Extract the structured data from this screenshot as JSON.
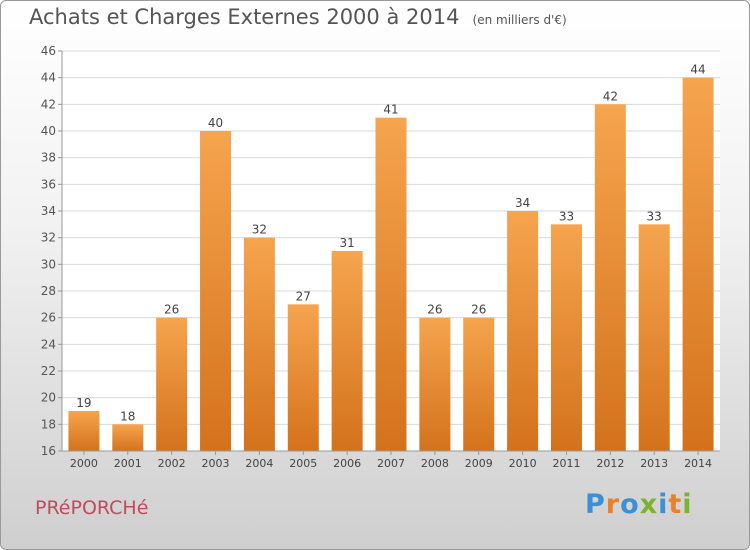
{
  "header": {
    "title": "Achats et Charges Externes 2000 à 2014",
    "unit": "(en milliers d'€)"
  },
  "footer": {
    "commune": "PRéPORCHé",
    "logo": {
      "text": "Proxiti",
      "colors": [
        "#3a8fd6",
        "#e8812a",
        "#3a8fd6",
        "#7bb32e",
        "#3a8fd6",
        "#e8812a",
        "#7bb32e"
      ]
    }
  },
  "chart_data": {
    "type": "bar",
    "categories": [
      "2000",
      "2001",
      "2002",
      "2003",
      "2004",
      "2005",
      "2006",
      "2007",
      "2008",
      "2009",
      "2010",
      "2011",
      "2012",
      "2013",
      "2014"
    ],
    "values": [
      19,
      18,
      26,
      40,
      32,
      27,
      31,
      41,
      26,
      26,
      34,
      33,
      42,
      33,
      44
    ],
    "ylim": [
      16,
      46
    ],
    "yticks": [
      16,
      18,
      20,
      22,
      24,
      26,
      28,
      30,
      32,
      34,
      36,
      38,
      40,
      42,
      44,
      46
    ],
    "grid": true,
    "bar_color": "#f08a30"
  }
}
